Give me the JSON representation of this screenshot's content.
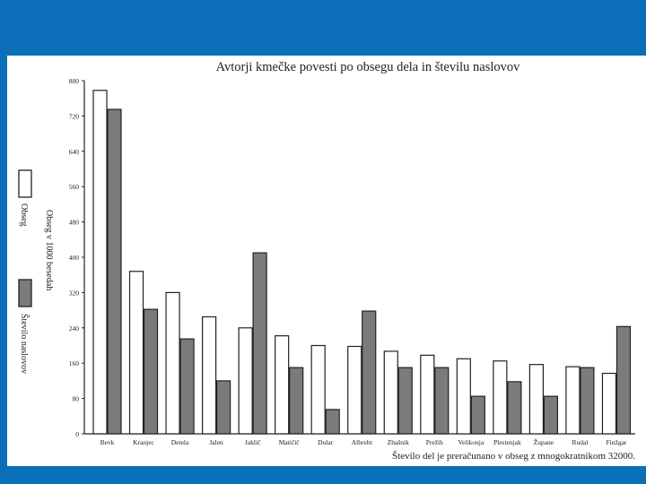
{
  "chart_data": {
    "type": "bar",
    "title": "Avtorji kmečke povesti po obsegu dela in številu naslovov",
    "ylabel": "Obseg v 1000 besedah",
    "note": "Število del je preračunano v obseg z mnogokratnikom 32000.",
    "ylim": [
      0,
      800
    ],
    "yticks": [
      0,
      80,
      160,
      240,
      320,
      400,
      480,
      560,
      640,
      720,
      800
    ],
    "categories": [
      "Bevk",
      "Kranjec",
      "Detela",
      "Jalen",
      "Jaklič",
      "Matičič",
      "Dular",
      "Albreht",
      "Zbašnik",
      "Prežih",
      "Velikonja",
      "Plestenjak",
      "Župane",
      "Rudal",
      "Finžgar"
    ],
    "series": [
      {
        "name": "Obseg",
        "color": "#ffffff",
        "values": [
          778,
          368,
          320,
          265,
          240,
          222,
          200,
          198,
          187,
          178,
          170,
          165,
          157,
          152,
          137
        ]
      },
      {
        "name": "Število naslovov",
        "color": "#7b7b7b",
        "values": [
          735,
          282,
          215,
          120,
          410,
          150,
          55,
          278,
          150,
          150,
          85,
          118,
          85,
          150,
          243
        ]
      }
    ],
    "legend_position": "left"
  }
}
